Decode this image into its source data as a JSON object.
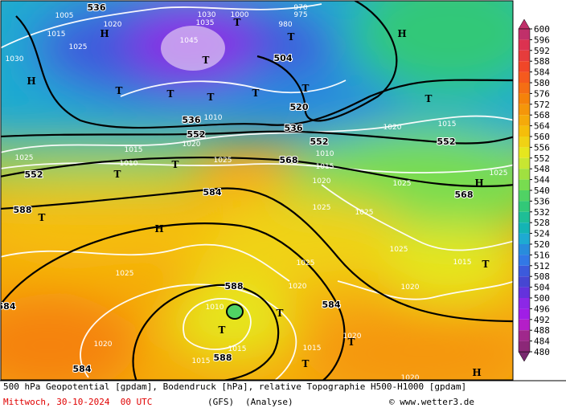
{
  "colorbar": {
    "levels": [
      "600",
      "596",
      "592",
      "588",
      "584",
      "580",
      "576",
      "572",
      "568",
      "564",
      "560",
      "556",
      "552",
      "548",
      "544",
      "540",
      "536",
      "532",
      "528",
      "524",
      "520",
      "516",
      "512",
      "508",
      "504",
      "500",
      "496",
      "492",
      "488",
      "484",
      "480"
    ],
    "colors": [
      "#c0306a",
      "#dc3250",
      "#e63c3c",
      "#f04628",
      "#f55a1e",
      "#f56e14",
      "#f5820a",
      "#f5960a",
      "#f5aa0a",
      "#f5be0a",
      "#f0d214",
      "#e6e61e",
      "#c8e632",
      "#a0e040",
      "#78dc50",
      "#50d264",
      "#32c878",
      "#1ebe96",
      "#14b4b4",
      "#1eaad2",
      "#288cdc",
      "#3278e6",
      "#3c5adc",
      "#4646d2",
      "#6432dc",
      "#8c28e6",
      "#a01ee6",
      "#b41ec8",
      "#a0288c",
      "#8c2878",
      "#78286e"
    ]
  },
  "map": {
    "height_labels": [
      "536",
      "504",
      "520",
      "536",
      "536",
      "552",
      "552",
      "552",
      "568",
      "552",
      "584",
      "568",
      "588",
      "588",
      "584",
      "588",
      "584",
      "584"
    ],
    "pressure_labels": [
      "1005",
      "1015",
      "1020",
      "1025",
      "1030",
      "1045",
      "1035",
      "1030",
      "1000",
      "980",
      "975",
      "970",
      "1025",
      "1015",
      "1010",
      "1020",
      "1025",
      "1010",
      "1020",
      "1015",
      "1010",
      "1015",
      "1020",
      "1025",
      "1025",
      "1025",
      "1025",
      "1025",
      "1025",
      "1025",
      "1020",
      "1015",
      "1020",
      "1020",
      "1015",
      "1015",
      "1010",
      "1015",
      "1020",
      "1020"
    ],
    "markers": [
      "H",
      "H",
      "H",
      "H",
      "H",
      "H",
      "T",
      "T",
      "T",
      "T",
      "T",
      "T",
      "T",
      "T",
      "T",
      "T",
      "T",
      "T",
      "T",
      "T",
      "T",
      "T",
      "T"
    ]
  },
  "footer": {
    "description": "500 hPa Geopotential [gpdam], Bodendruck [hPa], relative Topographie H500-H1000 [gpdam]",
    "date": "Mittwoch, 30-10-2024  00 UTC",
    "model": "(GFS)",
    "run": "(Analyse)",
    "copyright": "© www.wetter3.de"
  }
}
